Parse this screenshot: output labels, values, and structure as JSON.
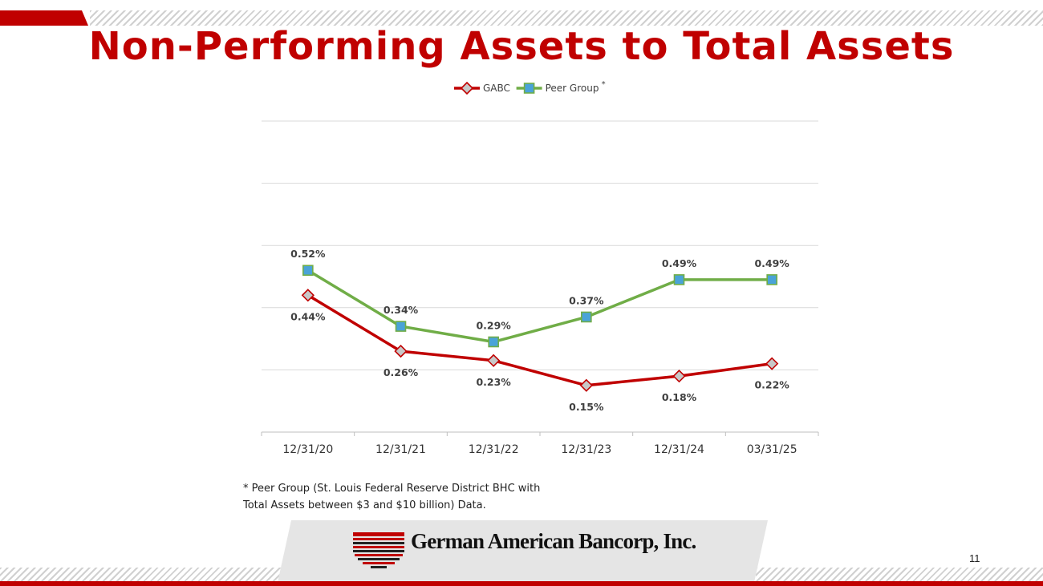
{
  "slide": {
    "title": "Non-Performing Assets to Total Assets",
    "footnote": "* Peer Group (St. Louis Federal Reserve District BHC with Total Assets between $3 and $10 billion) Data.",
    "company_name": "German American Bancorp, Inc.",
    "page_number": "11"
  },
  "colors": {
    "accent": "#c00000",
    "gabc": "#c00000",
    "peer": "#70ad47",
    "peer_marker": "#4aa3d8",
    "gabc_marker": "#c8c8c8"
  },
  "chart_data": {
    "type": "line",
    "title": "",
    "xlabel": "",
    "ylabel": "",
    "categories": [
      "12/31/20",
      "12/31/21",
      "12/31/22",
      "12/31/23",
      "12/31/24",
      "03/31/25"
    ],
    "ylim": [
      0,
      1.0
    ],
    "grid": true,
    "legend": "top",
    "series": [
      {
        "name": "GABC",
        "legend_label": "GABC",
        "values": [
          0.44,
          0.26,
          0.23,
          0.15,
          0.18,
          0.22
        ],
        "labels": [
          "0.44%",
          "0.26%",
          "0.23%",
          "0.15%",
          "0.18%",
          "0.22%"
        ],
        "label_position": "below"
      },
      {
        "name": "Peer Group",
        "legend_label": "Peer Group",
        "legend_suffix": "*",
        "values": [
          0.52,
          0.34,
          0.29,
          0.37,
          0.49,
          0.49
        ],
        "labels": [
          "0.52%",
          "0.34%",
          "0.29%",
          "0.37%",
          "0.49%",
          "0.49%"
        ],
        "label_position": "above"
      }
    ]
  }
}
